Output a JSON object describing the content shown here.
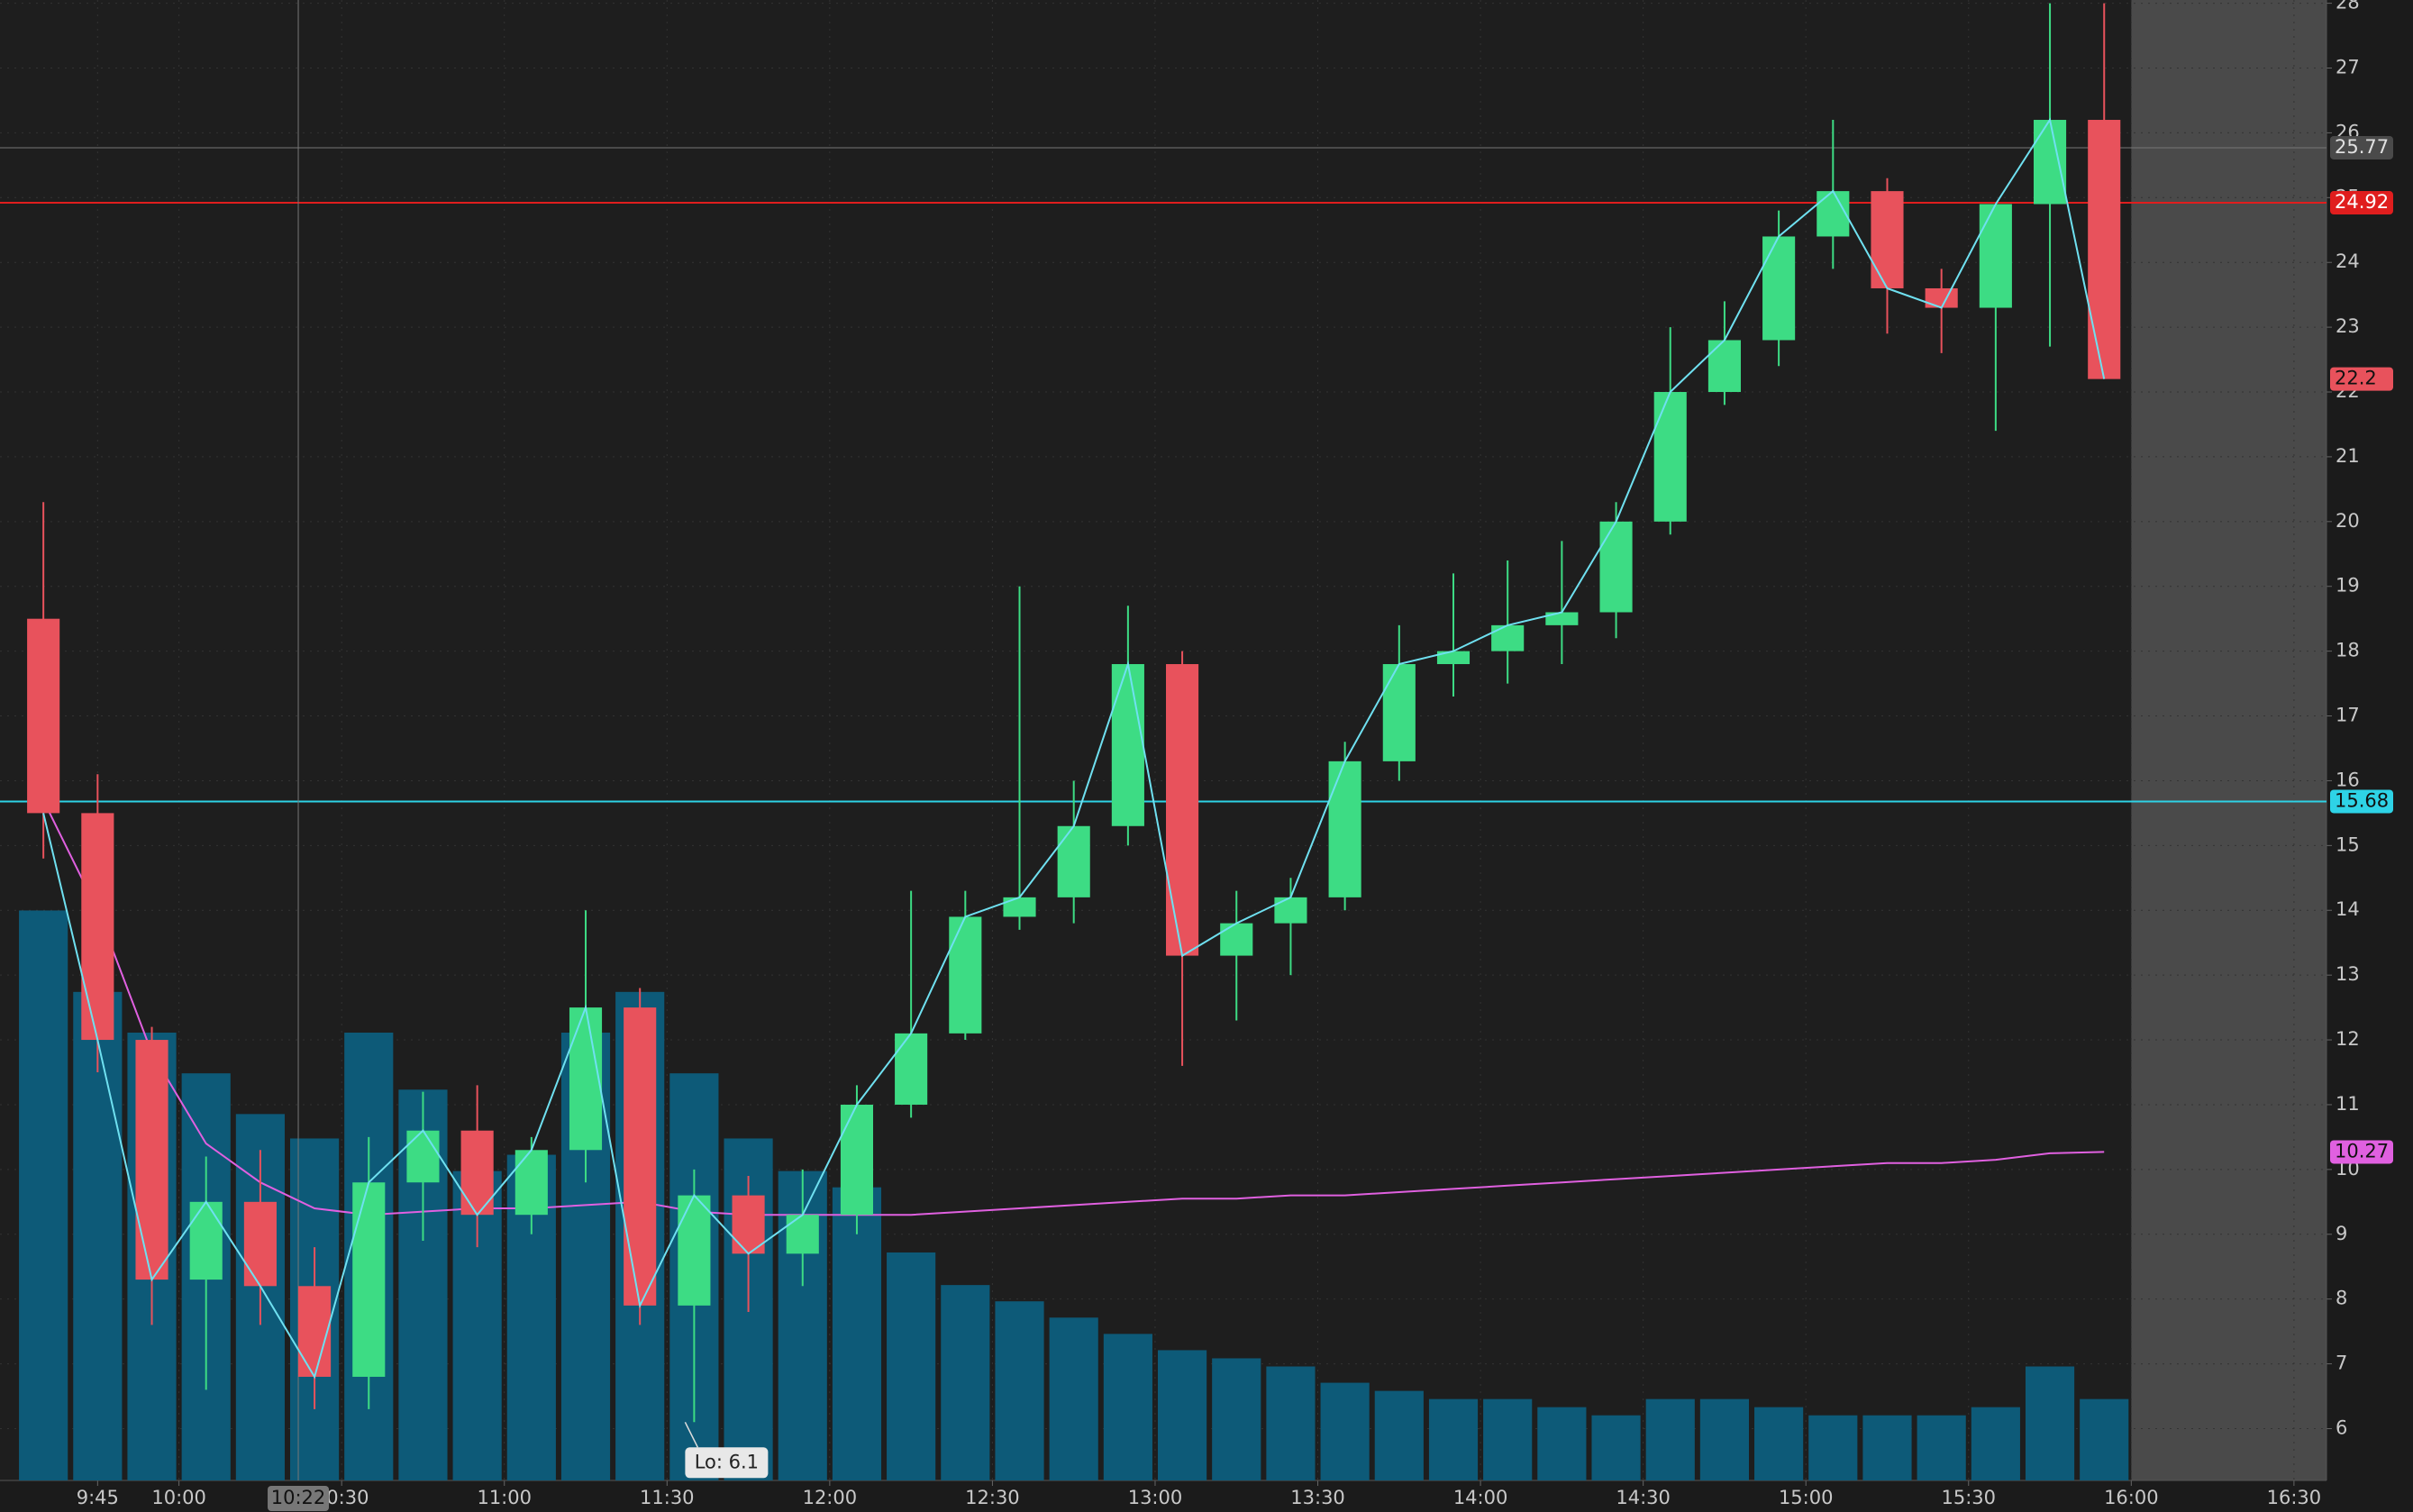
{
  "chart_data": {
    "type": "candlestick",
    "x": [
      575,
      585,
      595,
      605,
      615,
      625,
      635,
      645,
      655,
      665,
      675,
      685,
      695,
      705,
      715,
      725,
      735,
      745,
      755,
      765,
      775,
      785,
      795,
      805,
      815,
      825,
      835,
      845,
      855,
      865,
      875,
      885,
      895,
      905,
      915,
      925,
      935,
      945,
      955
    ],
    "open": [
      18.5,
      15.5,
      12.0,
      8.3,
      9.5,
      8.2,
      6.8,
      9.8,
      10.6,
      9.3,
      10.3,
      12.5,
      7.9,
      9.6,
      8.7,
      9.3,
      11.0,
      12.1,
      13.9,
      14.2,
      15.3,
      17.8,
      13.3,
      13.8,
      14.2,
      16.3,
      17.8,
      18.0,
      18.4,
      18.6,
      20.0,
      22.0,
      22.8,
      24.4,
      25.1,
      23.6,
      23.3,
      24.9,
      26.2
    ],
    "high": [
      20.3,
      16.1,
      12.2,
      10.2,
      10.3,
      8.8,
      10.5,
      11.2,
      11.3,
      10.5,
      14.0,
      12.8,
      10.0,
      9.9,
      10.0,
      11.3,
      14.3,
      14.3,
      19.0,
      16.0,
      18.7,
      18.0,
      14.3,
      14.5,
      16.6,
      18.4,
      19.2,
      19.4,
      19.7,
      20.3,
      23.0,
      23.4,
      24.8,
      26.2,
      25.3,
      23.9,
      24.9,
      28.0,
      28.0
    ],
    "low": [
      14.8,
      11.5,
      7.6,
      6.6,
      7.6,
      6.3,
      6.3,
      8.9,
      8.8,
      9.0,
      9.8,
      7.6,
      6.1,
      7.8,
      8.2,
      9.0,
      10.8,
      12.0,
      13.7,
      13.8,
      15.0,
      11.6,
      12.3,
      13.0,
      14.0,
      16.0,
      17.3,
      17.5,
      17.8,
      18.2,
      19.8,
      21.8,
      22.4,
      23.9,
      22.9,
      22.6,
      21.4,
      22.7,
      22.2
    ],
    "close": [
      15.5,
      12.0,
      8.3,
      9.5,
      8.2,
      6.8,
      9.8,
      10.6,
      9.3,
      10.3,
      12.5,
      7.9,
      9.6,
      8.7,
      9.3,
      11.0,
      12.1,
      13.9,
      14.2,
      15.3,
      17.8,
      13.3,
      13.8,
      14.2,
      16.3,
      17.8,
      18.0,
      18.4,
      18.6,
      20.0,
      22.0,
      22.8,
      24.4,
      25.1,
      23.6,
      23.3,
      24.9,
      26.2,
      22.2
    ],
    "volume": [
      70,
      60,
      55,
      50,
      45,
      42,
      55,
      48,
      38,
      40,
      55,
      60,
      50,
      42,
      38,
      36,
      28,
      24,
      22,
      20,
      18,
      16,
      15,
      14,
      12,
      11,
      10,
      10,
      9,
      8,
      10,
      10,
      9,
      8,
      8,
      8,
      9,
      14,
      10
    ],
    "vwap": [
      15.7,
      14.0,
      11.8,
      10.4,
      9.8,
      9.4,
      9.3,
      9.35,
      9.4,
      9.4,
      9.45,
      9.5,
      9.35,
      9.3,
      9.3,
      9.3,
      9.3,
      9.35,
      9.4,
      9.45,
      9.5,
      9.55,
      9.55,
      9.6,
      9.6,
      9.65,
      9.7,
      9.75,
      9.8,
      9.85,
      9.9,
      9.95,
      10.0,
      10.05,
      10.1,
      10.1,
      10.15,
      10.25,
      10.27
    ],
    "up_color": "#3ddc84",
    "down_color": "#e8525c",
    "close_line_color": "#6fe0f0",
    "vwap_color": "#e060e0",
    "volume_color": "#0d5a78",
    "xlim": [
      567,
      996
    ],
    "ylim": [
      5.2,
      28.05
    ],
    "vlim": [
      0,
      100
    ],
    "yticks": [
      6,
      7,
      8,
      9,
      10,
      11,
      12,
      13,
      14,
      15,
      16,
      17,
      18,
      19,
      20,
      21,
      22,
      23,
      24,
      25,
      26,
      27,
      28
    ],
    "xticks": [
      {
        "value": 585,
        "label": "9:45"
      },
      {
        "value": 600,
        "label": "10:00"
      },
      {
        "value": 630,
        "label": "10:30"
      },
      {
        "value": 660,
        "label": "11:00"
      },
      {
        "value": 690,
        "label": "11:30"
      },
      {
        "value": 720,
        "label": "12:00"
      },
      {
        "value": 750,
        "label": "12:30"
      },
      {
        "value": 780,
        "label": "13:00"
      },
      {
        "value": 810,
        "label": "13:30"
      },
      {
        "value": 840,
        "label": "14:00"
      },
      {
        "value": 870,
        "label": "14:30"
      },
      {
        "value": 900,
        "label": "15:00"
      },
      {
        "value": 930,
        "label": "15:30"
      },
      {
        "value": 960,
        "label": "16:00"
      },
      {
        "value": 990,
        "label": "16:30"
      }
    ],
    "levels": [
      {
        "value": 24.92,
        "color": "#e01e1e"
      },
      {
        "value": 15.68,
        "color": "#2ed3e6"
      }
    ],
    "crosshair": {
      "x": {
        "value": 622,
        "label": "10:22"
      },
      "y": 25.77
    },
    "annotations": [
      {
        "text": "Lo: 6.1",
        "x": 695,
        "y": 6.1
      }
    ],
    "grid": true
  }
}
